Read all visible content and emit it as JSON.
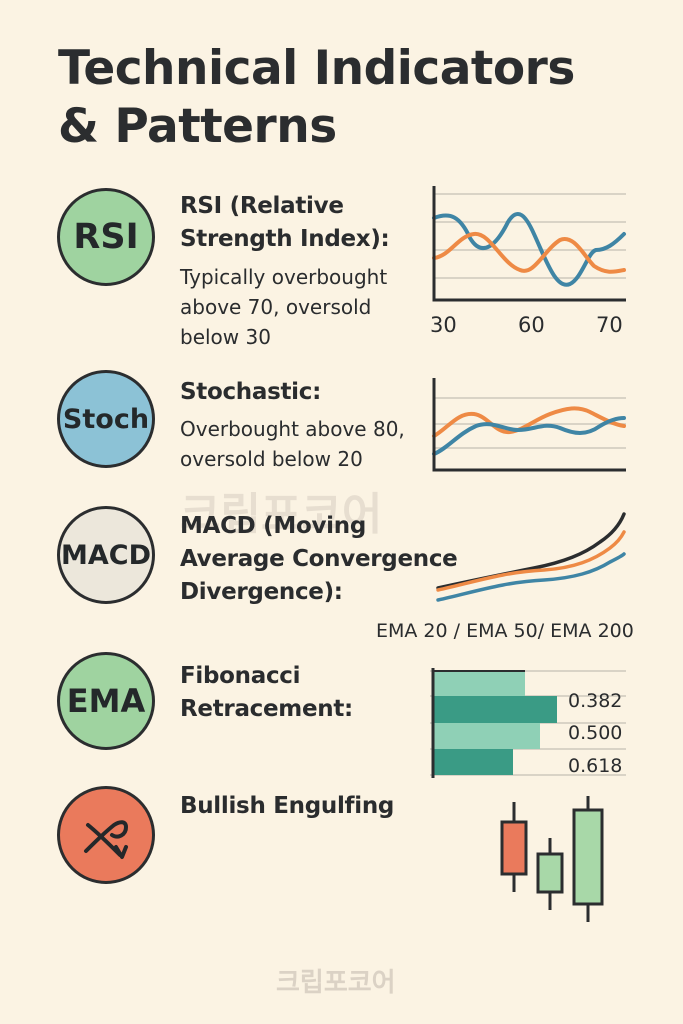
{
  "title": {
    "line1": "Technical Indicators",
    "line2": "& Patterns"
  },
  "colors": {
    "background": "#fbf3e3",
    "green_badge": "#9fd3a0",
    "blue_badge": "#8cc2d6",
    "gray_badge": "#ece7db",
    "red_badge": "#ea7a5c",
    "line_blue": "#3f85a5",
    "line_orange": "#ee8a45",
    "fib_dark": "#3a9b85",
    "fib_light": "#8fd0b6",
    "candle_red": "#ea7a5c",
    "candle_green": "#a8d8a8"
  },
  "rsi": {
    "badge": "RSI",
    "heading_line1": "RSI (Relative",
    "heading_line2": "Strength Index):",
    "desc_line1": "Typically overbought",
    "desc_line2": "above 70, oversold",
    "desc_line3": "below 30",
    "axis_labels": [
      "30",
      "60",
      "70"
    ]
  },
  "stoch": {
    "badge": "Stoch",
    "heading": "Stochastic:",
    "desc_line1": "Overbought above 80,",
    "desc_line2": "oversold below 20"
  },
  "macd": {
    "badge": "MACD",
    "heading_line1": "MACD (Moving",
    "heading_line2": "Average Convergence",
    "heading_line3": "Divergence):",
    "ema_label": "EMA 20 / EMA 50/ EMA 200"
  },
  "ema": {
    "badge": "EMA",
    "heading_line1": "Fibonacci",
    "heading_line2": "Retracement:",
    "fib_levels": [
      "0.382",
      "0.500",
      "0.618"
    ]
  },
  "bullish": {
    "badge_icon": "crossed-arrow-icon",
    "heading": "Bullish Engulfing"
  },
  "watermark": "크립포코어"
}
